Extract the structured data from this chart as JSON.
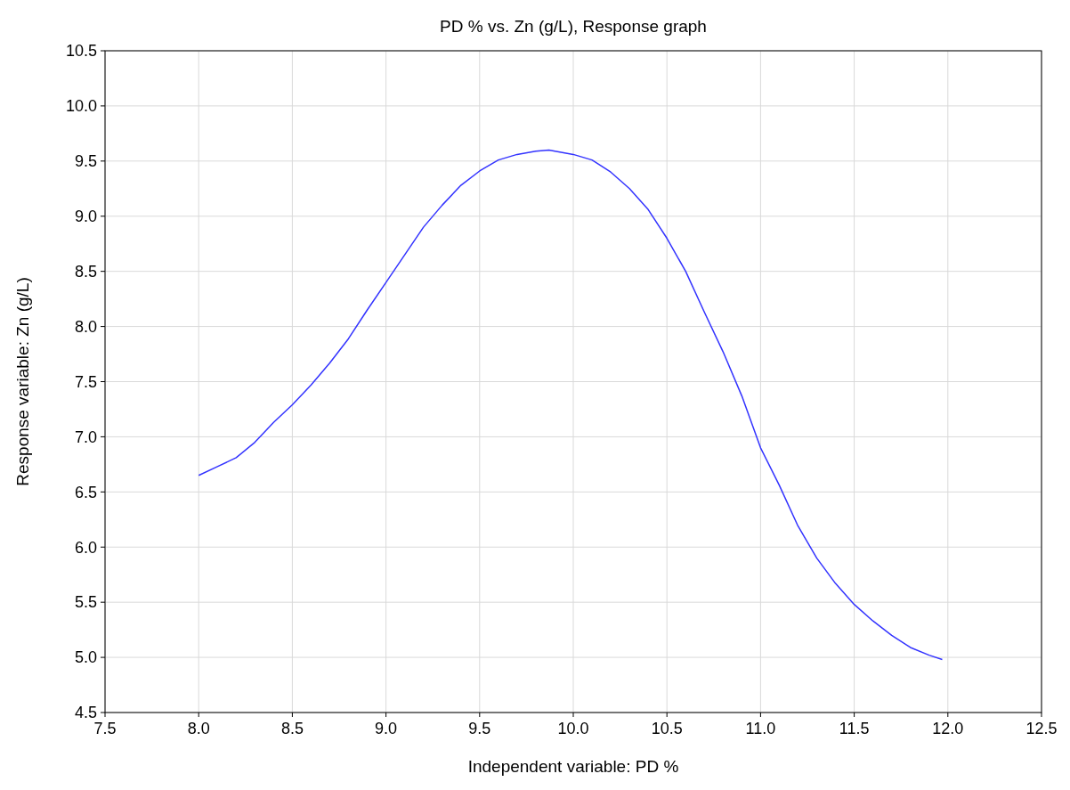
{
  "chart_data": {
    "type": "line",
    "title": "PD % vs. Zn (g/L), Response graph",
    "xlabel": "Independent variable: PD %",
    "ylabel": "Response variable: Zn (g/L)",
    "x": [
      8.0,
      8.1,
      8.2,
      8.3,
      8.4,
      8.5,
      8.6,
      8.7,
      8.8,
      8.9,
      9.0,
      9.1,
      9.2,
      9.3,
      9.4,
      9.5,
      9.6,
      9.7,
      9.8,
      9.87,
      10.0,
      10.1,
      10.2,
      10.3,
      10.4,
      10.5,
      10.6,
      10.7,
      10.8,
      10.9,
      11.0,
      11.1,
      11.2,
      11.3,
      11.4,
      11.5,
      11.6,
      11.7,
      11.8,
      11.9,
      11.97
    ],
    "series": [
      {
        "color": "#3333ff",
        "values": [
          6.65,
          6.73,
          6.81,
          6.95,
          7.13,
          7.29,
          7.47,
          7.67,
          7.89,
          8.15,
          8.4,
          8.65,
          8.9,
          9.1,
          9.28,
          9.41,
          9.51,
          9.56,
          9.59,
          9.6,
          9.56,
          9.51,
          9.4,
          9.25,
          9.06,
          8.8,
          8.5,
          8.13,
          7.77,
          7.37,
          6.9,
          6.56,
          6.19,
          5.9,
          5.67,
          5.48,
          5.33,
          5.2,
          5.09,
          5.02,
          4.98
        ]
      }
    ],
    "xlim": [
      7.5,
      12.5
    ],
    "xticks": [
      {
        "value": 7.5,
        "label": "7.5"
      },
      {
        "value": 8,
        "label": "8.0"
      },
      {
        "value": 8.5,
        "label": "8.5"
      },
      {
        "value": 9,
        "label": "9.0"
      },
      {
        "value": 9.5,
        "label": "9.5"
      },
      {
        "value": 10,
        "label": "10.0"
      },
      {
        "value": 10.5,
        "label": "10.5"
      },
      {
        "value": 11,
        "label": "11.0"
      },
      {
        "value": 11.5,
        "label": "11.5"
      },
      {
        "value": 12,
        "label": "12.0"
      },
      {
        "value": 12.5,
        "label": "12.5"
      }
    ],
    "ylim": [
      4.5,
      10.5
    ],
    "yticks": [
      {
        "value": 4.5,
        "label": "4.5"
      },
      {
        "value": 5,
        "label": "5.0"
      },
      {
        "value": 5.5,
        "label": "5.5"
      },
      {
        "value": 6,
        "label": "6.0"
      },
      {
        "value": 6.5,
        "label": "6.5"
      },
      {
        "value": 7,
        "label": "7.0"
      },
      {
        "value": 7.5,
        "label": "7.5"
      },
      {
        "value": 8,
        "label": "8.0"
      },
      {
        "value": 8.5,
        "label": "8.5"
      },
      {
        "value": 9,
        "label": "9.0"
      },
      {
        "value": 9.5,
        "label": "9.5"
      },
      {
        "value": 10,
        "label": "10.0"
      },
      {
        "value": 10.5,
        "label": "10.5"
      }
    ],
    "grid": true,
    "marker": "none",
    "line_style": "solid"
  }
}
